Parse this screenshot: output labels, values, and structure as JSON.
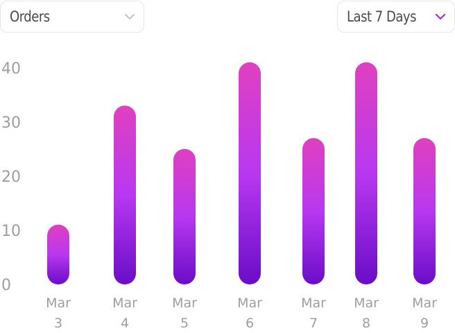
{
  "header": {
    "metric_select": {
      "value": "Orders",
      "icon": "chevron-down-icon",
      "icon_color": "#c4c4c4"
    },
    "range_select": {
      "value": "Last 7 Days",
      "icon": "chevron-down-icon",
      "icon_color": "#a020f0"
    }
  },
  "colors": {
    "bar_top": "#e040c0",
    "bar_mid": "#b838f0",
    "bar_bottom": "#6a0dc8",
    "tick_text": "#9e9e9e"
  },
  "chart_data": {
    "type": "bar",
    "categories": [
      [
        "Mar",
        "3"
      ],
      [
        "Mar",
        "4"
      ],
      [
        "Mar",
        "5"
      ],
      [
        "Mar",
        "6"
      ],
      [
        "Mar",
        "7"
      ],
      [
        "Mar",
        "8"
      ],
      [
        "Mar",
        "9"
      ]
    ],
    "values": [
      9,
      31,
      23,
      39,
      25,
      39,
      25
    ],
    "yticks": [
      "0",
      "10",
      "20",
      "30",
      "40"
    ],
    "ylim": [
      0,
      40
    ],
    "title": "",
    "xlabel": "",
    "ylabel": "",
    "grid": false
  }
}
